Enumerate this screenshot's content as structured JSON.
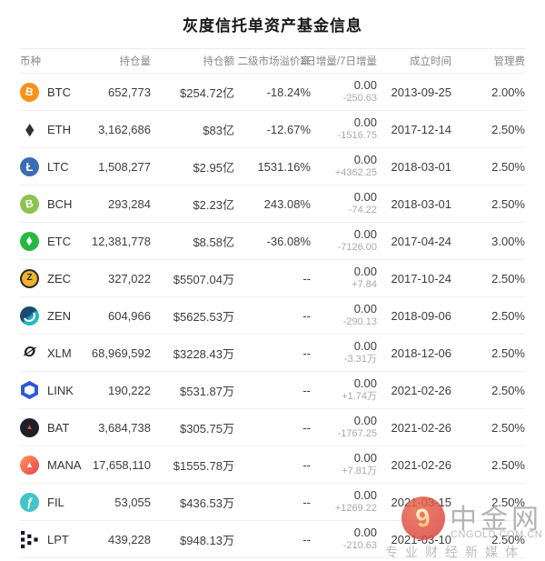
{
  "title": "灰度信托单资产基金信息",
  "table": {
    "headers": [
      "币种",
      "持仓量",
      "持仓额",
      "二级市场溢价率",
      "1日增量/7日增量",
      "成立时间",
      "管理费"
    ],
    "rows": [
      {
        "symbol": "BTC",
        "icon": {
          "name": "btc-icon",
          "glyph": "B",
          "color": "#f7931a"
        },
        "holdings": "652,773",
        "value": "$254.72亿",
        "premium": "-18.24%",
        "change_1d": "0.00",
        "change_7d": "-250.63",
        "founded": "2013-09-25",
        "fee": "2.00%"
      },
      {
        "symbol": "ETH",
        "icon": {
          "name": "eth-icon",
          "glyph": "◆",
          "color": "#303030"
        },
        "holdings": "3,162,686",
        "value": "$83亿",
        "premium": "-12.67%",
        "change_1d": "0.00",
        "change_7d": "-1516.75",
        "founded": "2017-12-14",
        "fee": "2.50%"
      },
      {
        "symbol": "LTC",
        "icon": {
          "name": "ltc-icon",
          "glyph": "Ł",
          "color": "#3a6db3"
        },
        "holdings": "1,508,277",
        "value": "$2.95亿",
        "premium": "1531.16%",
        "change_1d": "0.00",
        "change_7d": "+4362.25",
        "founded": "2018-03-01",
        "fee": "2.50%"
      },
      {
        "symbol": "BCH",
        "icon": {
          "name": "bch-icon",
          "glyph": "B",
          "color": "#8dc351"
        },
        "holdings": "293,284",
        "value": "$2.23亿",
        "premium": "243.08%",
        "change_1d": "0.00",
        "change_7d": "-74.22",
        "founded": "2018-03-01",
        "fee": "2.50%"
      },
      {
        "symbol": "ETC",
        "icon": {
          "name": "etc-icon",
          "glyph": "◆",
          "color": "#27b844"
        },
        "holdings": "12,381,778",
        "value": "$8.58亿",
        "premium": "-36.08%",
        "change_1d": "0.00",
        "change_7d": "-7126.00",
        "founded": "2017-04-24",
        "fee": "3.00%"
      },
      {
        "symbol": "ZEC",
        "icon": {
          "name": "zec-icon",
          "glyph": "Z",
          "color": "#f0b42c"
        },
        "holdings": "327,022",
        "value": "$5507.04万",
        "premium": "--",
        "change_1d": "0.00",
        "change_7d": "+7.84",
        "founded": "2017-10-24",
        "fee": "2.50%"
      },
      {
        "symbol": "ZEN",
        "icon": {
          "name": "zen-icon",
          "glyph": "",
          "color": "#2ab5c4"
        },
        "holdings": "604,966",
        "value": "$5625.53万",
        "premium": "--",
        "change_1d": "0.00",
        "change_7d": "-290.13",
        "founded": "2018-09-06",
        "fee": "2.50%"
      },
      {
        "symbol": "XLM",
        "icon": {
          "name": "xlm-icon",
          "glyph": "Ø",
          "color": "#1b1b1b"
        },
        "holdings": "68,969,592",
        "value": "$3228.43万",
        "premium": "--",
        "change_1d": "0.00",
        "change_7d": "-3.31万",
        "founded": "2018-12-06",
        "fee": "2.50%"
      },
      {
        "symbol": "LINK",
        "icon": {
          "name": "link-icon",
          "glyph": "",
          "color": "#2a5ada"
        },
        "holdings": "190,222",
        "value": "$531.87万",
        "premium": "--",
        "change_1d": "0.00",
        "change_7d": "+1.74万",
        "founded": "2021-02-26",
        "fee": "2.50%"
      },
      {
        "symbol": "BAT",
        "icon": {
          "name": "bat-icon",
          "glyph": "▲",
          "color": "#211f29"
        },
        "holdings": "3,684,738",
        "value": "$305.75万",
        "premium": "--",
        "change_1d": "0.00",
        "change_7d": "-1767.25",
        "founded": "2021-02-26",
        "fee": "2.50%"
      },
      {
        "symbol": "MANA",
        "icon": {
          "name": "mana-icon",
          "glyph": "▲",
          "color": "#e8414d"
        },
        "holdings": "17,658,110",
        "value": "$1555.78万",
        "premium": "--",
        "change_1d": "0.00",
        "change_7d": "+7.81万",
        "founded": "2021-02-26",
        "fee": "2.50%"
      },
      {
        "symbol": "FIL",
        "icon": {
          "name": "fil-icon",
          "glyph": "ƒ",
          "color": "#41c5c9"
        },
        "holdings": "53,055",
        "value": "$436.53万",
        "premium": "--",
        "change_1d": "0.00",
        "change_7d": "+1269.22",
        "founded": "2021-03-15",
        "fee": "2.50%"
      },
      {
        "symbol": "LPT",
        "icon": {
          "name": "lpt-icon",
          "glyph": "",
          "color": "#14141f"
        },
        "holdings": "439,228",
        "value": "$948.13万",
        "premium": "--",
        "change_1d": "0.00",
        "change_7d": "-210.63",
        "founded": "2021-03-10",
        "fee": "2.50%"
      }
    ]
  },
  "watermark": {
    "brand": "中金网",
    "domain": "CNGOLD.COM.CN",
    "slogan": "专业财经新媒体",
    "logo_glyph": "9",
    "logo_color": "#dc4b43"
  }
}
